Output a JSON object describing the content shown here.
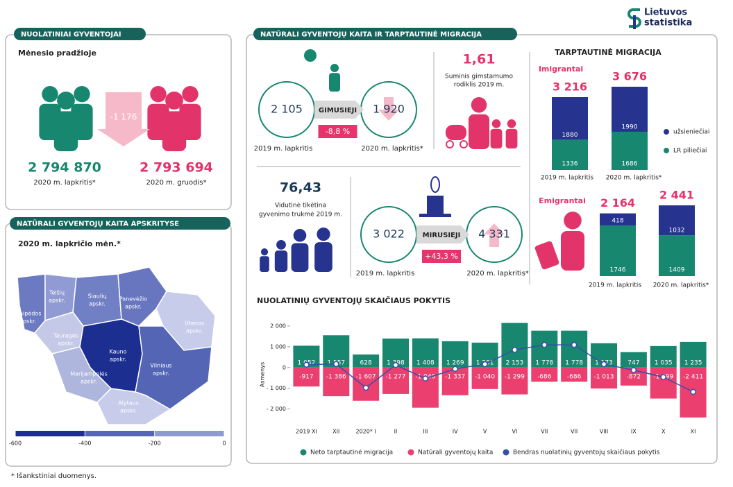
{
  "logo": [
    "Lietuvos",
    "statistika"
  ],
  "residents": {
    "title": "NUOLATINIAI GYVENTOJAI",
    "subtitle": "Mėnesio pradžioje",
    "change": "-1 176",
    "before": {
      "value": "2 794 870",
      "label": "2020 m. lapkritis*"
    },
    "after": {
      "value": "2 793 694",
      "label": "2020 m. gruodis*"
    }
  },
  "natural": {
    "title": "NATŪRALI GYVENTOJŲ KAITA IR TARPTAUTINĖ MIGRACIJA",
    "births": {
      "label": "GIMUSIEJI",
      "before": "2 105",
      "after": "1 920",
      "change": "-8,8 %",
      "before_label": "2019 m. lapkritis",
      "after_label": "2020 m. lapkritis*"
    },
    "fertility": {
      "value": "1,61",
      "label": [
        "Suminis gimstamumo",
        "rodiklis 2019 m."
      ]
    },
    "life": {
      "value": "76,43",
      "label": [
        "Vidutinė tikėtina",
        "gyvenimo trukmė 2019 m."
      ]
    },
    "deaths": {
      "label": "MIRUSIEJI",
      "before": "3 022",
      "after": "4 331",
      "change": "+43,3 %",
      "before_label": "2019 m. lapkritis",
      "after_label": "2020 m. lapkritis*"
    }
  },
  "counties": {
    "title": "NATŪRALI GYVENTOJŲ KAITA APSKRITYSE",
    "subtitle": "2020 m. lapkričio mėn.*",
    "regions": [
      [
        "Klaipėdos",
        "apskr."
      ],
      [
        "Telšių",
        "apskr."
      ],
      [
        "Šiaulių",
        "apskr."
      ],
      [
        "Panevėžio",
        "apskr."
      ],
      [
        "Utenos",
        "apskr."
      ],
      [
        "Tauragės",
        "apskr."
      ],
      [
        "Kauno",
        "apskr."
      ],
      [
        "Vilniaus",
        "apskr."
      ],
      [
        "Marijampolės",
        "apskr."
      ],
      [
        "Alytaus",
        "apskr."
      ]
    ],
    "scale_ticks": [
      -600,
      -400,
      -200,
      0
    ]
  },
  "footnote": "* Išankstiniai duomenys.",
  "chart_data": [
    {
      "type": "bar",
      "stacked": true,
      "title": "TARPTAUTINĖ MIGRACIJA",
      "subtitle": "Imigrantai",
      "categories": [
        "2019 m. lapkritis",
        "2020 m. lapkritis*"
      ],
      "total_labels": [
        "3 216",
        "3 676"
      ],
      "series": [
        {
          "name": "LR piliečiai",
          "color": "#17876f",
          "values": [
            1336,
            1686
          ]
        },
        {
          "name": "užsieniečiai",
          "color": "#26338f",
          "values": [
            1880,
            1990
          ]
        }
      ]
    },
    {
      "type": "bar",
      "stacked": true,
      "title": "Emigrantai",
      "categories": [
        "2019 m. lapkritis",
        "2020 m. lapkritis*"
      ],
      "total_labels": [
        "2 164",
        "2 441"
      ],
      "series": [
        {
          "color": "#17876f",
          "values": [
            1746,
            1409
          ]
        },
        {
          "color": "#26338f",
          "values": [
            418,
            1032
          ]
        }
      ]
    },
    {
      "type": "bar",
      "title": "NUOLATINIŲ GYVENTOJŲ SKAIČIAUS POKYTIS",
      "ylabel": "Asmenys",
      "categories": [
        "2019 XI",
        "XII",
        "2020* I",
        "II",
        "III",
        "IV",
        "V",
        "VI",
        "VII",
        "VII",
        "VIII",
        "IX",
        "X",
        "XI"
      ],
      "ylim": [
        -2520,
        2336
      ],
      "yticks": [
        {
          "value": 2000,
          "label": "2 000"
        },
        {
          "value": 1000,
          "label": "1 000"
        },
        0,
        {
          "value": -1000,
          "label": "- 1 000"
        },
        {
          "value": -2000,
          "label": "- 2 000"
        }
      ],
      "grid": false,
      "series": [
        {
          "name": "Neto tarptautinė migracija",
          "type": "bar",
          "color": "#17876f",
          "values": [
            1052,
            1557,
            628,
            1398,
            1408,
            1269,
            1201,
            2153,
            1778,
            1778,
            1173,
            747,
            1035,
            1235
          ],
          "value_labels": [
            "1 052",
            "1 557",
            "628",
            "1 398",
            "1 408",
            "1 269",
            "1 201",
            "2 153",
            "1 778",
            "1 778",
            "1 173",
            "747",
            "1 035",
            "1 235"
          ]
        },
        {
          "name": "Natūrali gyventojų kaita",
          "type": "bar",
          "color": "#ea3f6f",
          "values": [
            -917,
            -1386,
            -1607,
            -1277,
            -1940,
            -1337,
            -1040,
            -1299,
            -686,
            -686,
            -1013,
            -872,
            -1499,
            -2411
          ],
          "value_labels": [
            "-917",
            "-1 386",
            "-1 607",
            "-1 277",
            "-1 940",
            "-1 337",
            "-1 040",
            "-1 299",
            "-686",
            "-686",
            "-1 013",
            "-872",
            "-1 499",
            "-2 411"
          ]
        },
        {
          "name": "Bendras nuolatinių gyventojų skaičiaus pokytis",
          "type": "line",
          "color": "#3550a8",
          "values": [
            135,
            171,
            -979,
            121,
            -532,
            -68,
            161,
            854,
            1092,
            1092,
            160,
            -125,
            -464,
            -1176
          ]
        }
      ]
    }
  ]
}
